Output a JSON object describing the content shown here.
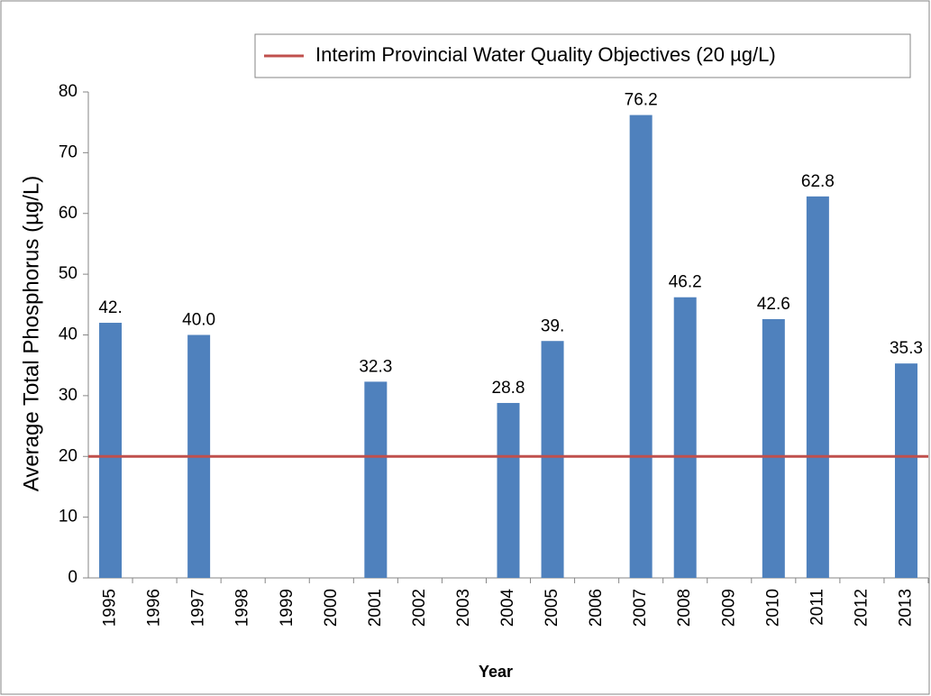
{
  "chart_data": {
    "type": "bar",
    "x_label": "Year",
    "y_label": "Average Total Phosphorus (µg/L)",
    "categories": [
      "1995",
      "1996",
      "1997",
      "1998",
      "1999",
      "2000",
      "2001",
      "2002",
      "2003",
      "2004",
      "2005",
      "2006",
      "2007",
      "2008",
      "2009",
      "2010",
      "2011",
      "2012",
      "2013"
    ],
    "values": [
      42,
      null,
      40,
      null,
      null,
      null,
      32.3,
      null,
      null,
      28.8,
      39,
      null,
      76.2,
      46.2,
      null,
      42.6,
      62.8,
      null,
      35.3
    ],
    "value_labels": [
      "42.",
      null,
      "40.0",
      null,
      null,
      null,
      "32.3",
      null,
      null,
      "28.8",
      "39.",
      null,
      "76.2",
      "46.2",
      null,
      "42.6",
      "62.8",
      null,
      "35.3"
    ],
    "color": "#4f81bd",
    "reference_line": {
      "name": "Interim Provincial Water Quality Objectives (20 µg/L)",
      "value": 20,
      "color": "#c0504d"
    },
    "ylim": [
      0,
      80
    ],
    "yticks": [
      0,
      10,
      20,
      30,
      40,
      50,
      60,
      70,
      80
    ],
    "legend": "top-right"
  }
}
